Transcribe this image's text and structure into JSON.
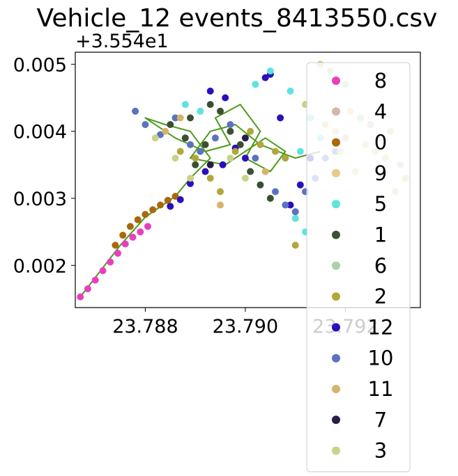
{
  "chart_data": {
    "type": "scatter",
    "title": "Vehicle_12 events_8413550.csv",
    "xlabel": "",
    "ylabel": "",
    "x_ticks": [
      "23.788",
      "23.790",
      "23.792"
    ],
    "x_tick_values": [
      23.788,
      23.79,
      23.792
    ],
    "y_ticks": [
      "0.002",
      "0.003",
      "0.004",
      "0.005"
    ],
    "y_tick_values": [
      0.002,
      0.003,
      0.004,
      0.005
    ],
    "y_offset_text": "+3.554e1",
    "xlim": [
      23.7866,
      23.7935
    ],
    "ylim": [
      0.00137,
      0.00518
    ],
    "grid": false,
    "legend_placement": "right, overlapping the plot and extending below it",
    "legend": [
      {
        "label": "8",
        "color": "#e83fbf"
      },
      {
        "label": "4",
        "color": "#d2b7aa"
      },
      {
        "label": "0",
        "color": "#a8680b"
      },
      {
        "label": "9",
        "color": "#ecc98b"
      },
      {
        "label": "5",
        "color": "#5ee3dd"
      },
      {
        "label": "1",
        "color": "#3b4f32"
      },
      {
        "label": "6",
        "color": "#a8d4a4"
      },
      {
        "label": "2",
        "color": "#b1a73c"
      },
      {
        "label": "12",
        "color": "#2c0fbc"
      },
      {
        "label": "10",
        "color": "#5b72c1"
      },
      {
        "label": "11",
        "color": "#d6b36a"
      },
      {
        "label": "7",
        "color": "#2a1a4e"
      },
      {
        "label": "3",
        "color": "#ccd18a"
      }
    ],
    "series": [
      {
        "name": "8",
        "color": "#e83fbf",
        "points": [
          [
            23.7867,
            0.00153
          ],
          [
            23.78685,
            0.00165
          ],
          [
            23.787,
            0.00178
          ],
          [
            23.78715,
            0.00192
          ],
          [
            23.7873,
            0.00205
          ],
          [
            23.78745,
            0.00218
          ],
          [
            23.7876,
            0.00232
          ],
          [
            23.78775,
            0.00242
          ],
          [
            23.7879,
            0.0025
          ],
          [
            23.78805,
            0.00258
          ]
        ]
      },
      {
        "name": "0",
        "color": "#a8680b",
        "points": [
          [
            23.7874,
            0.0023
          ],
          [
            23.78755,
            0.00245
          ],
          [
            23.7877,
            0.00258
          ],
          [
            23.78785,
            0.00268
          ],
          [
            23.788,
            0.00276
          ],
          [
            23.78815,
            0.00283
          ],
          [
            23.7883,
            0.0029
          ],
          [
            23.78845,
            0.00297
          ],
          [
            23.7886,
            0.00303
          ]
        ]
      },
      {
        "name": "12",
        "color": "#2c0fbc",
        "points": [
          [
            23.7885,
            0.00288
          ],
          [
            23.7887,
            0.00298
          ],
          [
            23.7889,
            0.00322
          ],
          [
            23.7892,
            0.0034
          ],
          [
            23.78955,
            0.0035
          ],
          [
            23.7898,
            0.00375
          ],
          [
            23.79,
            0.0036
          ],
          [
            23.7893,
            0.0046
          ],
          [
            23.7896,
            0.0045
          ],
          [
            23.7904,
            0.0048
          ],
          [
            23.7905,
            0.00485
          ],
          [
            23.7909,
            0.0029
          ],
          [
            23.7911,
            0.0032
          ],
          [
            23.7913,
            0.0036
          ],
          [
            23.7907,
            0.0042
          ]
        ]
      },
      {
        "name": "10",
        "color": "#5b72c1",
        "points": [
          [
            23.7878,
            0.0043
          ],
          [
            23.788,
            0.0041
          ],
          [
            23.7883,
            0.00395
          ],
          [
            23.7886,
            0.0042
          ],
          [
            23.7889,
            0.0038
          ],
          [
            23.7891,
            0.0037
          ],
          [
            23.7894,
            0.0039
          ],
          [
            23.7897,
            0.0041
          ],
          [
            23.7902,
            0.0036
          ],
          [
            23.7906,
            0.0031
          ],
          [
            23.7908,
            0.0029
          ],
          [
            23.791,
            0.0028
          ],
          [
            23.7912,
            0.0031
          ],
          [
            23.7914,
            0.0033
          ],
          [
            23.7916,
            0.0036
          ],
          [
            23.7918,
            0.0037
          ]
        ]
      },
      {
        "name": "5",
        "color": "#5ee3dd",
        "points": [
          [
            23.7888,
            0.0044
          ],
          [
            23.7891,
            0.0043
          ],
          [
            23.7902,
            0.0047
          ],
          [
            23.7905,
            0.0049
          ],
          [
            23.7909,
            0.0046
          ],
          [
            23.7913,
            0.0042
          ],
          [
            23.7915,
            0.0039
          ],
          [
            23.7911,
            0.0037
          ],
          [
            23.791,
            0.0027
          ],
          [
            23.7912,
            0.0025
          ]
        ]
      },
      {
        "name": "1",
        "color": "#3b4f32",
        "points": [
          [
            23.7885,
            0.0041
          ],
          [
            23.7888,
            0.0039
          ],
          [
            23.789,
            0.0035
          ],
          [
            23.7893,
            0.0044
          ],
          [
            23.7895,
            0.0043
          ],
          [
            23.7897,
            0.004
          ],
          [
            23.7899,
            0.0038
          ],
          [
            23.7901,
            0.0034
          ],
          [
            23.7903,
            0.0032
          ],
          [
            23.7905,
            0.003
          ],
          [
            23.7892,
            0.0038
          ],
          [
            23.7889,
            0.0042
          ]
        ]
      },
      {
        "name": "2",
        "color": "#b1a73c",
        "points": [
          [
            23.7887,
            0.0037
          ],
          [
            23.789,
            0.0036
          ],
          [
            23.7893,
            0.0033
          ],
          [
            23.7895,
            0.0031
          ],
          [
            23.7898,
            0.0037
          ],
          [
            23.7901,
            0.004
          ],
          [
            23.7903,
            0.0038
          ],
          [
            23.7906,
            0.0037
          ],
          [
            23.7908,
            0.0036
          ],
          [
            23.791,
            0.0023
          ]
        ]
      },
      {
        "name": "3",
        "color": "#ccd18a",
        "points": [
          [
            23.7882,
            0.0039
          ],
          [
            23.7886,
            0.0036
          ],
          [
            23.7889,
            0.0033
          ],
          [
            23.7897,
            0.0036
          ],
          [
            23.79,
            0.0033
          ],
          [
            23.7912,
            0.0044
          ],
          [
            23.7916,
            0.0041
          ],
          [
            23.7919,
            0.0037
          ],
          [
            23.7922,
            0.0034
          ],
          [
            23.7926,
            0.0037
          ],
          [
            23.7929,
            0.004
          ],
          [
            23.7932,
            0.0033
          ],
          [
            23.793,
            0.0031
          ],
          [
            23.7915,
            0.005
          ]
        ]
      },
      {
        "name": "6",
        "color": "#a8d4a4",
        "points": [
          [
            23.7917,
            0.0049
          ],
          [
            23.792,
            0.0047
          ],
          [
            23.7923,
            0.0042
          ],
          [
            23.7927,
            0.0039
          ],
          [
            23.7931,
            0.0035
          ]
        ]
      },
      {
        "name": "9",
        "color": "#ecc98b",
        "points": [
          [
            23.7918,
            0.004
          ],
          [
            23.7921,
            0.0043
          ],
          [
            23.7924,
            0.0038
          ],
          [
            23.7928,
            0.0036
          ]
        ]
      },
      {
        "name": "4",
        "color": "#d2b7aa",
        "points": [
          [
            23.792,
            0.0039
          ],
          [
            23.7925,
            0.0041
          ]
        ]
      },
      {
        "name": "11",
        "color": "#d6b36a",
        "points": [
          [
            23.7884,
            0.004
          ],
          [
            23.7887,
            0.0042
          ],
          [
            23.7895,
            0.0029
          ],
          [
            23.7904,
            0.0034
          ]
        ]
      },
      {
        "name": "7",
        "color": "#2a1a4e",
        "points": [
          [
            23.7893,
            0.0035
          ],
          [
            23.79,
            0.0039
          ]
        ]
      }
    ],
    "trajectory_line": {
      "color": "#4c9a1a",
      "points": [
        [
          23.7867,
          0.00153
        ],
        [
          23.7875,
          0.0023
        ],
        [
          23.788,
          0.00272
        ],
        [
          23.7886,
          0.00303
        ],
        [
          23.7889,
          0.0033
        ],
        [
          23.7893,
          0.0036
        ],
        [
          23.7889,
          0.004
        ],
        [
          23.7884,
          0.0041
        ],
        [
          23.788,
          0.0042
        ],
        [
          23.7886,
          0.0039
        ],
        [
          23.7892,
          0.0037
        ],
        [
          23.7897,
          0.0038
        ],
        [
          23.7894,
          0.0042
        ],
        [
          23.7899,
          0.0044
        ],
        [
          23.7903,
          0.004
        ],
        [
          23.79,
          0.0036
        ],
        [
          23.7905,
          0.0034
        ],
        [
          23.7908,
          0.0037
        ],
        [
          23.7904,
          0.0039
        ],
        [
          23.7896,
          0.0035
        ],
        [
          23.7889,
          0.0036
        ],
        [
          23.7893,
          0.004
        ],
        [
          23.7898,
          0.0041
        ],
        [
          23.7903,
          0.0038
        ],
        [
          23.791,
          0.0036
        ],
        [
          23.7915,
          0.0037
        ]
      ]
    }
  }
}
